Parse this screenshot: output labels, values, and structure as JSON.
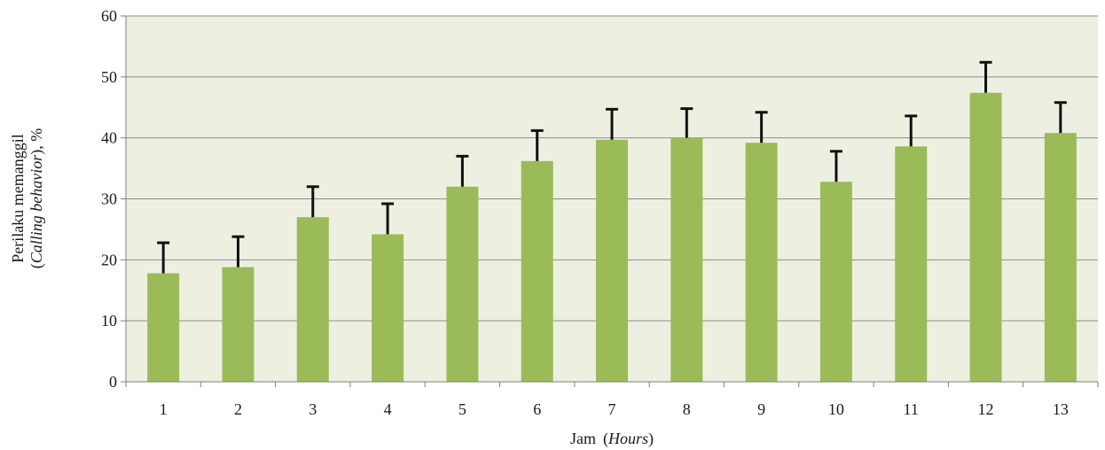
{
  "chart_data": {
    "type": "bar",
    "categories": [
      "1",
      "2",
      "3",
      "4",
      "5",
      "6",
      "7",
      "8",
      "9",
      "10",
      "11",
      "12",
      "13"
    ],
    "values": [
      17.8,
      18.8,
      27.0,
      24.2,
      32.0,
      36.2,
      39.7,
      40.0,
      39.2,
      32.8,
      38.6,
      47.4,
      40.8
    ],
    "error_upper": [
      5.0,
      5.0,
      5.0,
      5.0,
      5.0,
      5.0,
      5.0,
      4.8,
      5.0,
      5.0,
      5.0,
      5.0,
      5.0
    ],
    "xlabel_main": "Jam",
    "xlabel_italic": "Hours",
    "ylabel_line1": "Perilaku memanggil",
    "ylabel_line2_italic": "Calling behavior",
    "ylabel_line2_suffix": "), %",
    "ylim": [
      0,
      60
    ],
    "yticks": [
      "0",
      "10",
      "20",
      "30",
      "40",
      "50",
      "60"
    ],
    "grid": true,
    "colors": {
      "bar": "#9bbb59",
      "plot_background": "#edf0e0",
      "grid": "#8c8c8c",
      "error_bar": "#111111"
    }
  }
}
